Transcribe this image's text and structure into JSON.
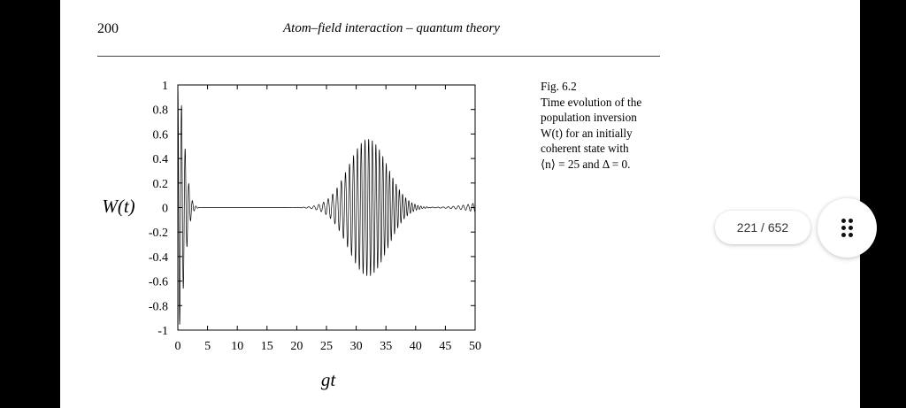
{
  "document": {
    "page_number": "200",
    "running_head": "Atom–field interaction – quantum theory",
    "caption": [
      "Fig. 6.2",
      "Time evolution of the",
      "population inversion",
      "W(t) for an initially",
      "coherent state with",
      "⟨n⟩ = 25 and Δ = 0."
    ]
  },
  "viewer": {
    "page_indicator": "221 / 652",
    "menu_icon": "more-dots-icon"
  },
  "chart_data": {
    "type": "line",
    "title": "",
    "xlabel": "gt",
    "ylabel": "W(t)",
    "xlim": [
      0,
      50
    ],
    "ylim": [
      -1,
      1
    ],
    "xticks": [
      "0",
      "5",
      "10",
      "15",
      "20",
      "25",
      "30",
      "35",
      "40",
      "45",
      "50"
    ],
    "yticks": [
      "1",
      "0.8",
      "0.6",
      "0.4",
      "0.2",
      "0",
      "-0.2",
      "-0.4",
      "-0.6",
      "-0.8",
      "-1"
    ],
    "grid": false,
    "legend": "none",
    "series": [
      {
        "description_free": true,
        "mean_photon_number": 25,
        "detuning": 0,
        "x_samples": [
          0,
          1,
          2,
          3,
          5,
          10,
          20,
          25,
          28,
          30,
          32,
          33,
          35,
          38,
          40,
          45,
          50
        ],
        "y_envelope": [
          1,
          0.6,
          0.2,
          0.02,
          0.0,
          0.0,
          0.0,
          0.02,
          0.15,
          0.35,
          0.5,
          0.55,
          0.45,
          0.2,
          0.05,
          0.02,
          0.03
        ]
      }
    ]
  }
}
